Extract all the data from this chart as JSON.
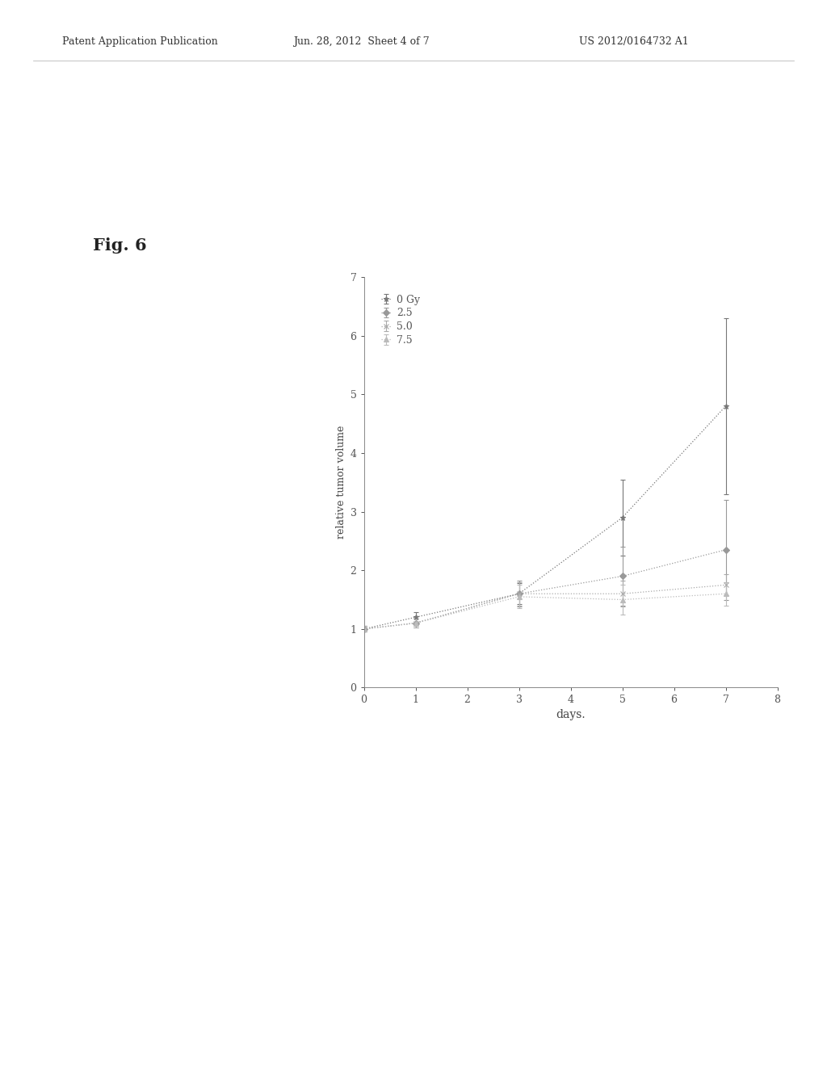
{
  "xlabel": "days.",
  "ylabel": "relative tumor volume",
  "xlim": [
    0,
    8
  ],
  "ylim": [
    0,
    7
  ],
  "xticks": [
    0,
    1,
    2,
    3,
    4,
    5,
    6,
    7,
    8
  ],
  "yticks": [
    0,
    1,
    2,
    3,
    4,
    5,
    6,
    7
  ],
  "series": [
    {
      "label": "0 Gy",
      "x": [
        0,
        1,
        3,
        5,
        7
      ],
      "y": [
        1.0,
        1.2,
        1.6,
        2.9,
        4.8
      ],
      "yerr": [
        0.05,
        0.08,
        0.18,
        0.65,
        1.5
      ],
      "color": "#888888",
      "marker": "*",
      "linestyle": "dotted"
    },
    {
      "label": "2.5",
      "x": [
        0,
        1,
        3,
        5,
        7
      ],
      "y": [
        1.0,
        1.1,
        1.6,
        1.9,
        2.35
      ],
      "yerr": [
        0.05,
        0.08,
        0.22,
        0.5,
        0.85
      ],
      "color": "#aaaaaa",
      "marker": "D",
      "linestyle": "dotted"
    },
    {
      "label": "5.0",
      "x": [
        0,
        1,
        3,
        5,
        7
      ],
      "y": [
        1.0,
        1.1,
        1.6,
        1.6,
        1.75
      ],
      "yerr": [
        0.05,
        0.08,
        0.2,
        0.22,
        0.18
      ],
      "color": "#bbbbbb",
      "marker": "x",
      "linestyle": "dotted"
    },
    {
      "label": "7.5",
      "x": [
        0,
        1,
        3,
        5,
        7
      ],
      "y": [
        1.0,
        1.1,
        1.55,
        1.5,
        1.6
      ],
      "yerr": [
        0.05,
        0.08,
        0.2,
        0.25,
        0.2
      ],
      "color": "#cccccc",
      "marker": "^",
      "linestyle": "dotted"
    }
  ],
  "header_left": "Patent Application Publication",
  "header_center": "Jun. 28, 2012  Sheet 4 of 7",
  "header_right": "US 2012/0164732 A1",
  "fig_label": "Fig. 6",
  "background_color": "#ffffff"
}
